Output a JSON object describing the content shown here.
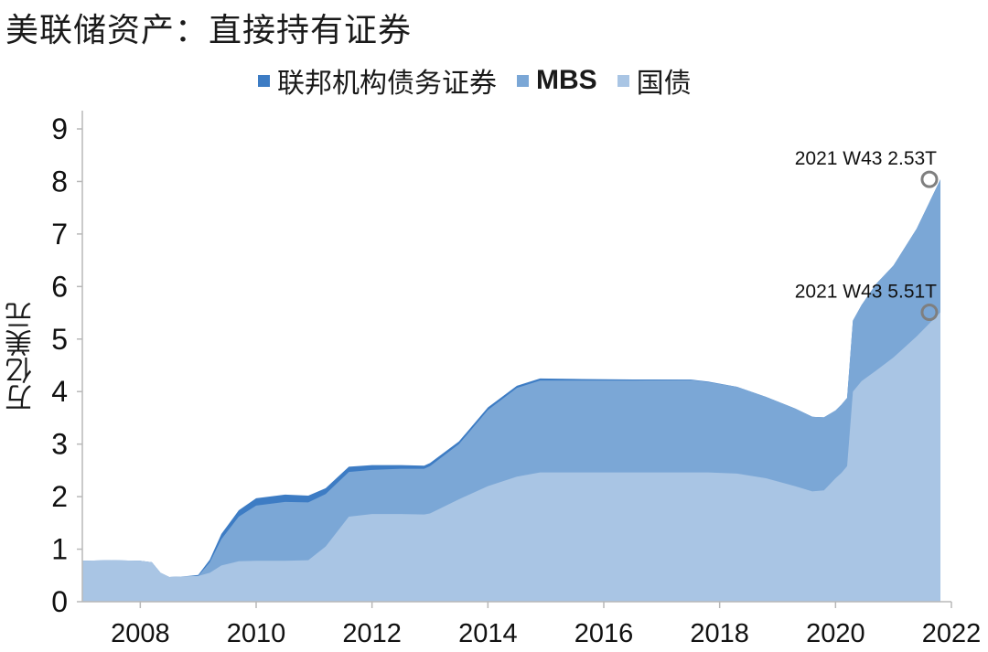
{
  "title": "美联储资产：直接持有证券",
  "chart_data": {
    "type": "area",
    "stacked": true,
    "title": "美联储资产：直接持有证券",
    "ylabel": "万亿美元",
    "xlabel": "",
    "ylim": [
      0,
      9
    ],
    "xlim": [
      2007.0,
      2022.0
    ],
    "y_ticks": [
      "0",
      "1",
      "2",
      "3",
      "4",
      "5",
      "6",
      "7",
      "8",
      "9"
    ],
    "x_ticks": [
      "2008",
      "2010",
      "2012",
      "2014",
      "2016",
      "2018",
      "2020",
      "2022"
    ],
    "legend_position": "top",
    "grid": false,
    "colors": {
      "agency": "#3d7cc4",
      "mbs": "#7ba7d6",
      "treasury": "#a9c5e4"
    },
    "x": [
      2007.0,
      2007.5,
      2008.0,
      2008.2,
      2008.35,
      2008.5,
      2008.75,
      2009.0,
      2009.2,
      2009.4,
      2009.7,
      2010.0,
      2010.5,
      2010.9,
      2011.2,
      2011.6,
      2012.0,
      2012.5,
      2012.9,
      2013.0,
      2013.5,
      2014.0,
      2014.5,
      2014.9,
      2015.5,
      2016.5,
      2017.5,
      2017.8,
      2018.3,
      2018.8,
      2019.3,
      2019.6,
      2019.8,
      2020.0,
      2020.1,
      2020.2,
      2020.3,
      2020.45,
      2020.7,
      2021.0,
      2021.4,
      2021.81
    ],
    "series": [
      {
        "name": "国债",
        "values": [
          0.78,
          0.79,
          0.78,
          0.75,
          0.55,
          0.47,
          0.48,
          0.49,
          0.55,
          0.69,
          0.77,
          0.78,
          0.78,
          0.79,
          1.05,
          1.62,
          1.67,
          1.67,
          1.66,
          1.68,
          1.95,
          2.2,
          2.38,
          2.46,
          2.46,
          2.46,
          2.46,
          2.46,
          2.44,
          2.35,
          2.2,
          2.1,
          2.12,
          2.35,
          2.45,
          2.58,
          4.0,
          4.2,
          4.4,
          4.65,
          5.05,
          5.51
        ]
      },
      {
        "name": "MBS",
        "values": [
          0,
          0,
          0,
          0,
          0,
          0,
          0,
          0,
          0.2,
          0.5,
          0.85,
          1.05,
          1.12,
          1.1,
          1.0,
          0.85,
          0.84,
          0.86,
          0.87,
          0.9,
          1.05,
          1.45,
          1.69,
          1.75,
          1.75,
          1.75,
          1.76,
          1.72,
          1.65,
          1.55,
          1.48,
          1.42,
          1.39,
          1.29,
          1.3,
          1.3,
          1.35,
          1.45,
          1.65,
          1.75,
          2.05,
          2.53
        ]
      },
      {
        "name": "联邦机构债务证券",
        "values": [
          0,
          0,
          0,
          0,
          0,
          0.0,
          0.0,
          0.02,
          0.05,
          0.1,
          0.12,
          0.14,
          0.14,
          0.13,
          0.11,
          0.1,
          0.09,
          0.07,
          0.06,
          0.06,
          0.05,
          0.05,
          0.04,
          0.04,
          0.03,
          0.02,
          0.01,
          0.01,
          0.0,
          0.0,
          0.0,
          0.0,
          0.0,
          0.0,
          0.0,
          0.0,
          0.0,
          0.0,
          0.0,
          0.0,
          0.0,
          0.0
        ]
      }
    ],
    "annotations": [
      {
        "text": "2021 W43 2.53T",
        "x": 2021.81,
        "y": 8.04
      },
      {
        "text": "2021 W43 5.51T",
        "x": 2021.81,
        "y": 5.51
      }
    ]
  },
  "legend": [
    {
      "key": "agency",
      "label": "联邦机构债务证券"
    },
    {
      "key": "mbs",
      "label": "MBS"
    },
    {
      "key": "treasury",
      "label": "国债"
    }
  ]
}
